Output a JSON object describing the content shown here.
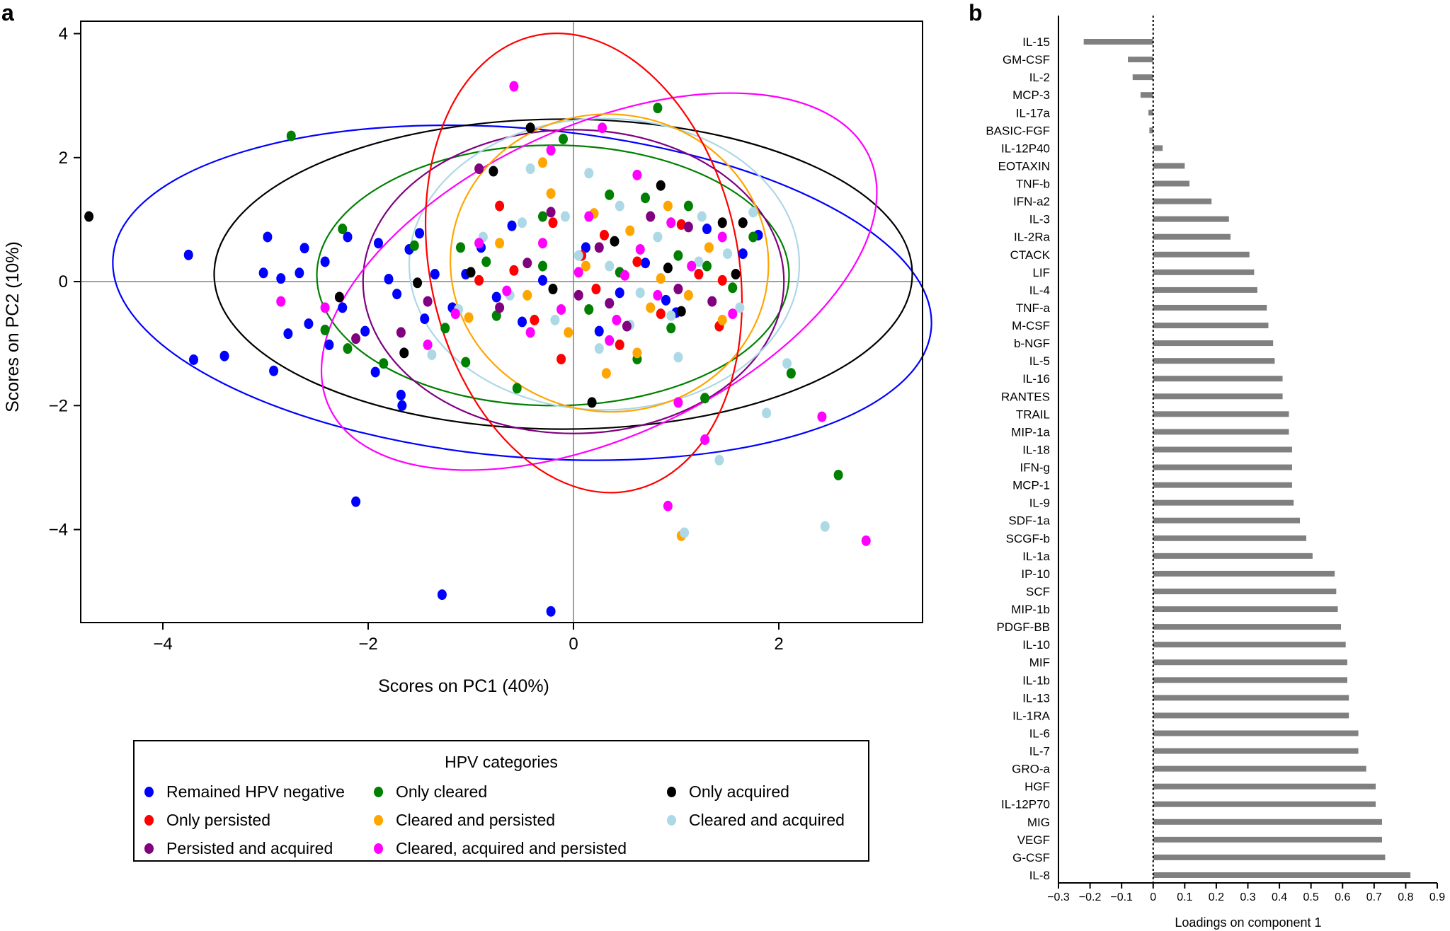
{
  "panels": {
    "a_label": "a",
    "b_label": "b"
  },
  "legend": {
    "title": "HPV categories",
    "items": [
      {
        "label": "Remained HPV negative",
        "color": "#0000ff"
      },
      {
        "label": "Only cleared",
        "color": "#008000"
      },
      {
        "label": "Only acquired",
        "color": "#000000"
      },
      {
        "label": "Only persisted",
        "color": "#ff0000"
      },
      {
        "label": "Cleared and persisted",
        "color": "#ffa500"
      },
      {
        "label": "Cleared and acquired",
        "color": "#add8e6"
      },
      {
        "label": "Persisted and acquired",
        "color": "#800080"
      },
      {
        "label": "Cleared, acquired and persisted",
        "color": "#ff00ff"
      }
    ]
  },
  "chart_data": [
    {
      "type": "scatter",
      "title": "",
      "xlabel": "Scores on PC1 (40%)",
      "ylabel": "Scores on PC2 (10%)",
      "xlim": [
        -4.8,
        3.4
      ],
      "ylim": [
        -5.5,
        4.2
      ],
      "xticks": [
        -4,
        -2,
        0,
        2
      ],
      "yticks": [
        -4,
        -2,
        0,
        2,
        4
      ],
      "tick_labels_x": [
        "−4",
        "−2",
        "0",
        "2"
      ],
      "tick_labels_y": [
        "−4",
        "−2",
        "0",
        "2",
        "4"
      ],
      "series": [
        {
          "name": "Remained HPV negative",
          "color": "#0000ff",
          "points": [
            [
              -3.75,
              0.43
            ],
            [
              -3.7,
              -1.26
            ],
            [
              -3.4,
              -1.2
            ],
            [
              -2.98,
              0.72
            ],
            [
              -2.92,
              -1.44
            ],
            [
              -3.02,
              0.14
            ],
            [
              -2.85,
              0.05
            ],
            [
              -2.78,
              -0.84
            ],
            [
              -2.67,
              0.14
            ],
            [
              -2.62,
              0.54
            ],
            [
              -2.58,
              -0.68
            ],
            [
              -2.42,
              0.32
            ],
            [
              -2.38,
              -1.02
            ],
            [
              -2.25,
              -0.42
            ],
            [
              -2.2,
              0.72
            ],
            [
              -2.12,
              -3.55
            ],
            [
              -2.03,
              -0.8
            ],
            [
              -1.93,
              -1.46
            ],
            [
              -1.9,
              0.62
            ],
            [
              -1.8,
              0.04
            ],
            [
              -1.72,
              -0.2
            ],
            [
              -1.68,
              -1.83
            ],
            [
              -1.67,
              -2.0
            ],
            [
              -1.6,
              0.52
            ],
            [
              -1.5,
              0.78
            ],
            [
              -1.45,
              -0.6
            ],
            [
              -1.28,
              -5.05
            ],
            [
              -1.18,
              -0.42
            ],
            [
              -1.05,
              0.12
            ],
            [
              -0.9,
              0.55
            ],
            [
              -0.75,
              -0.25
            ],
            [
              -0.6,
              0.9
            ],
            [
              -0.22,
              -5.32
            ],
            [
              -0.3,
              0.02
            ],
            [
              0.12,
              0.55
            ],
            [
              0.45,
              -0.18
            ],
            [
              0.7,
              0.3
            ],
            [
              1.0,
              -0.5
            ],
            [
              1.3,
              0.85
            ],
            [
              1.65,
              0.45
            ],
            [
              1.8,
              0.75
            ],
            [
              -0.5,
              -0.65
            ],
            [
              0.25,
              -0.8
            ],
            [
              -1.35,
              0.12
            ],
            [
              0.9,
              -0.3
            ]
          ]
        },
        {
          "name": "Only cleared",
          "color": "#008000",
          "points": [
            [
              -2.75,
              2.35
            ],
            [
              -2.42,
              -0.78
            ],
            [
              -2.25,
              0.85
            ],
            [
              -2.2,
              -1.08
            ],
            [
              -1.85,
              -1.32
            ],
            [
              -1.55,
              0.58
            ],
            [
              -1.25,
              -0.75
            ],
            [
              -1.05,
              -1.3
            ],
            [
              -0.85,
              0.32
            ],
            [
              -0.55,
              -1.72
            ],
            [
              -0.3,
              0.25
            ],
            [
              -0.1,
              2.3
            ],
            [
              0.15,
              -0.45
            ],
            [
              0.35,
              1.4
            ],
            [
              0.62,
              -1.25
            ],
            [
              0.82,
              2.8
            ],
            [
              1.02,
              0.42
            ],
            [
              1.28,
              -1.88
            ],
            [
              1.55,
              -0.1
            ],
            [
              1.75,
              0.72
            ],
            [
              2.12,
              -1.48
            ],
            [
              2.58,
              -3.12
            ],
            [
              -0.75,
              -0.55
            ],
            [
              0.45,
              0.15
            ],
            [
              0.95,
              -0.75
            ],
            [
              1.3,
              0.25
            ],
            [
              -0.3,
              1.05
            ],
            [
              0.7,
              1.35
            ],
            [
              -1.1,
              0.55
            ],
            [
              1.12,
              1.22
            ]
          ]
        },
        {
          "name": "Only acquired",
          "color": "#000000",
          "points": [
            [
              -4.72,
              1.05
            ],
            [
              -2.28,
              -0.25
            ],
            [
              -1.65,
              -1.15
            ],
            [
              -1.52,
              -0.02
            ],
            [
              -0.78,
              1.78
            ],
            [
              -0.42,
              2.48
            ],
            [
              0.18,
              -1.95
            ],
            [
              0.85,
              1.55
            ],
            [
              0.92,
              0.22
            ],
            [
              1.45,
              0.95
            ],
            [
              1.58,
              0.12
            ],
            [
              1.65,
              0.95
            ],
            [
              -0.2,
              -0.12
            ],
            [
              0.4,
              0.65
            ],
            [
              1.05,
              -0.48
            ],
            [
              -1.0,
              0.15
            ]
          ]
        },
        {
          "name": "Only persisted",
          "color": "#ff0000",
          "points": [
            [
              -0.72,
              1.22
            ],
            [
              -0.58,
              0.18
            ],
            [
              -0.38,
              -0.62
            ],
            [
              -0.2,
              0.95
            ],
            [
              -0.12,
              -1.25
            ],
            [
              0.08,
              0.42
            ],
            [
              0.22,
              -0.12
            ],
            [
              0.45,
              -1.02
            ],
            [
              0.62,
              0.32
            ],
            [
              0.85,
              -0.52
            ],
            [
              1.05,
              0.92
            ],
            [
              1.22,
              0.12
            ],
            [
              1.42,
              -0.72
            ],
            [
              1.45,
              0.02
            ],
            [
              -0.92,
              0.02
            ],
            [
              0.3,
              0.75
            ]
          ]
        },
        {
          "name": "Cleared and persisted",
          "color": "#ffa500",
          "points": [
            [
              -1.02,
              -0.58
            ],
            [
              -0.72,
              0.62
            ],
            [
              -0.45,
              -0.22
            ],
            [
              -0.22,
              1.42
            ],
            [
              -0.05,
              -0.82
            ],
            [
              0.12,
              0.25
            ],
            [
              0.32,
              -1.48
            ],
            [
              0.55,
              0.82
            ],
            [
              0.75,
              -0.42
            ],
            [
              0.92,
              1.22
            ],
            [
              1.05,
              -4.1
            ],
            [
              1.12,
              -0.22
            ],
            [
              1.32,
              0.55
            ],
            [
              1.45,
              -0.62
            ],
            [
              -0.3,
              1.92
            ],
            [
              0.62,
              -1.15
            ],
            [
              0.85,
              0.05
            ],
            [
              0.2,
              1.1
            ]
          ]
        },
        {
          "name": "Cleared and acquired",
          "color": "#add8e6",
          "points": [
            [
              -1.38,
              -1.18
            ],
            [
              -1.12,
              -0.45
            ],
            [
              -0.88,
              0.72
            ],
            [
              -0.62,
              -0.22
            ],
            [
              -0.42,
              1.82
            ],
            [
              -0.18,
              -0.62
            ],
            [
              0.05,
              0.42
            ],
            [
              0.25,
              -1.08
            ],
            [
              0.45,
              1.22
            ],
            [
              0.65,
              -0.18
            ],
            [
              0.82,
              0.72
            ],
            [
              1.02,
              -1.22
            ],
            [
              1.22,
              0.32
            ],
            [
              1.42,
              -2.88
            ],
            [
              1.62,
              -0.42
            ],
            [
              1.75,
              1.12
            ],
            [
              1.88,
              -2.12
            ],
            [
              2.08,
              -1.32
            ],
            [
              2.45,
              -3.95
            ],
            [
              1.08,
              -4.05
            ],
            [
              0.15,
              1.75
            ],
            [
              0.95,
              -0.55
            ],
            [
              1.25,
              1.05
            ],
            [
              -0.08,
              1.05
            ],
            [
              0.55,
              -0.7
            ],
            [
              0.35,
              0.25
            ],
            [
              -0.5,
              0.95
            ],
            [
              1.5,
              0.45
            ]
          ]
        },
        {
          "name": "Persisted and acquired",
          "color": "#800080",
          "points": [
            [
              -2.12,
              -0.92
            ],
            [
              -1.68,
              -0.82
            ],
            [
              -1.42,
              -0.32
            ],
            [
              -0.92,
              1.82
            ],
            [
              -0.72,
              -0.42
            ],
            [
              -0.22,
              1.12
            ],
            [
              0.05,
              -0.22
            ],
            [
              0.25,
              0.55
            ],
            [
              0.52,
              -0.72
            ],
            [
              0.75,
              1.05
            ],
            [
              1.02,
              -0.12
            ],
            [
              1.12,
              0.88
            ],
            [
              1.35,
              -0.32
            ],
            [
              -0.45,
              0.3
            ],
            [
              0.35,
              -0.35
            ]
          ]
        },
        {
          "name": "Cleared, acquired and persisted",
          "color": "#ff00ff",
          "points": [
            [
              -2.85,
              -0.32
            ],
            [
              -2.42,
              -0.42
            ],
            [
              -1.42,
              -1.02
            ],
            [
              -1.15,
              -0.52
            ],
            [
              -0.92,
              0.62
            ],
            [
              -0.58,
              3.15
            ],
            [
              -0.42,
              -0.82
            ],
            [
              -0.22,
              2.12
            ],
            [
              0.05,
              0.15
            ],
            [
              0.28,
              2.48
            ],
            [
              0.42,
              -0.62
            ],
            [
              0.62,
              1.72
            ],
            [
              0.82,
              -0.22
            ],
            [
              0.92,
              -3.62
            ],
            [
              1.02,
              -1.95
            ],
            [
              1.28,
              -2.55
            ],
            [
              1.45,
              0.72
            ],
            [
              1.55,
              -0.52
            ],
            [
              2.42,
              -2.18
            ],
            [
              2.85,
              -4.18
            ],
            [
              -0.3,
              0.62
            ],
            [
              0.15,
              1.05
            ],
            [
              0.65,
              0.52
            ],
            [
              -0.65,
              -0.15
            ],
            [
              1.15,
              0.25
            ],
            [
              0.35,
              -0.95
            ],
            [
              -0.12,
              -0.45
            ],
            [
              0.95,
              0.95
            ],
            [
              0.5,
              0.1
            ]
          ]
        }
      ],
      "ellipses": [
        {
          "series": "Remained HPV negative",
          "color": "#0000ff",
          "cx": -0.5,
          "cy": -0.18,
          "rx": 4.0,
          "ry": 2.65,
          "angle_deg": 5
        },
        {
          "series": "Only acquired",
          "color": "#000000",
          "cx": -0.1,
          "cy": 0.12,
          "rx": 3.4,
          "ry": 2.5,
          "angle_deg": 0
        },
        {
          "series": "Only cleared",
          "color": "#008000",
          "cx": -0.2,
          "cy": 0.1,
          "rx": 2.3,
          "ry": 2.1,
          "angle_deg": 0
        },
        {
          "series": "Persisted and acquired",
          "color": "#800080",
          "cx": 0.0,
          "cy": 0.0,
          "rx": 2.05,
          "ry": 2.45,
          "angle_deg": 0
        },
        {
          "series": "Cleared and acquired",
          "color": "#add8e6",
          "cx": 0.3,
          "cy": 0.28,
          "rx": 1.9,
          "ry": 2.35,
          "angle_deg": 0
        },
        {
          "series": "Cleared, acquired and persisted",
          "color": "#ff00ff",
          "cx": 0.25,
          "cy": 0.0,
          "rx": 2.9,
          "ry": 2.5,
          "angle_deg": -25
        },
        {
          "series": "Cleared and persisted",
          "color": "#ffa500",
          "cx": 0.35,
          "cy": 0.3,
          "rx": 1.55,
          "ry": 2.4,
          "angle_deg": 5
        },
        {
          "series": "Only persisted",
          "color": "#ff0000",
          "cx": 0.1,
          "cy": 0.3,
          "rx": 1.5,
          "ry": 3.75,
          "angle_deg": -12
        }
      ]
    },
    {
      "type": "bar",
      "orientation": "horizontal",
      "xlabel": "Loadings on component  1",
      "xlim": [
        -0.3,
        0.9
      ],
      "xticks": [
        -0.3,
        -0.2,
        -0.1,
        0,
        0.1,
        0.2,
        0.3,
        0.4,
        0.5,
        0.6,
        0.7,
        0.8,
        0.9
      ],
      "tick_labels_x": [
        "−0.3",
        "−0.2",
        "−0.1",
        "0",
        "0.1",
        "0.2",
        "0.3",
        "0.4",
        "0.5",
        "0.6",
        "0.7",
        "0.8",
        "0.9"
      ],
      "reference_line": 0,
      "categories": [
        "IL-15",
        "GM-CSF",
        "IL-2",
        "MCP-3",
        "IL-17a",
        "BASIC-FGF",
        "IL-12P40",
        "EOTAXIN",
        "TNF-b",
        "IFN-a2",
        "IL-3",
        "IL-2Ra",
        "CTACK",
        "LIF",
        "IL-4",
        "TNF-a",
        "M-CSF",
        "b-NGF",
        "IL-5",
        "IL-16",
        "RANTES",
        "TRAIL",
        "MIP-1a",
        "IL-18",
        "IFN-g",
        "MCP-1",
        "IL-9",
        "SDF-1a",
        "SCGF-b",
        "IL-1a",
        "IP-10",
        "SCF",
        "MIP-1b",
        "PDGF-BB",
        "IL-10",
        "MIF",
        "IL-1b",
        "IL-13",
        "IL-1RA",
        "IL-6",
        "IL-7",
        "GRO-a",
        "HGF",
        "IL-12P70",
        "MIG",
        "VEGF",
        "G-CSF",
        "IL-8"
      ],
      "values": [
        -0.22,
        -0.08,
        -0.065,
        -0.04,
        -0.015,
        -0.012,
        0.03,
        0.1,
        0.115,
        0.185,
        0.24,
        0.245,
        0.305,
        0.32,
        0.33,
        0.36,
        0.365,
        0.38,
        0.385,
        0.41,
        0.41,
        0.43,
        0.43,
        0.44,
        0.44,
        0.44,
        0.445,
        0.465,
        0.485,
        0.505,
        0.575,
        0.58,
        0.585,
        0.595,
        0.61,
        0.615,
        0.615,
        0.62,
        0.62,
        0.65,
        0.65,
        0.675,
        0.705,
        0.705,
        0.725,
        0.725,
        0.735,
        0.815
      ]
    }
  ]
}
